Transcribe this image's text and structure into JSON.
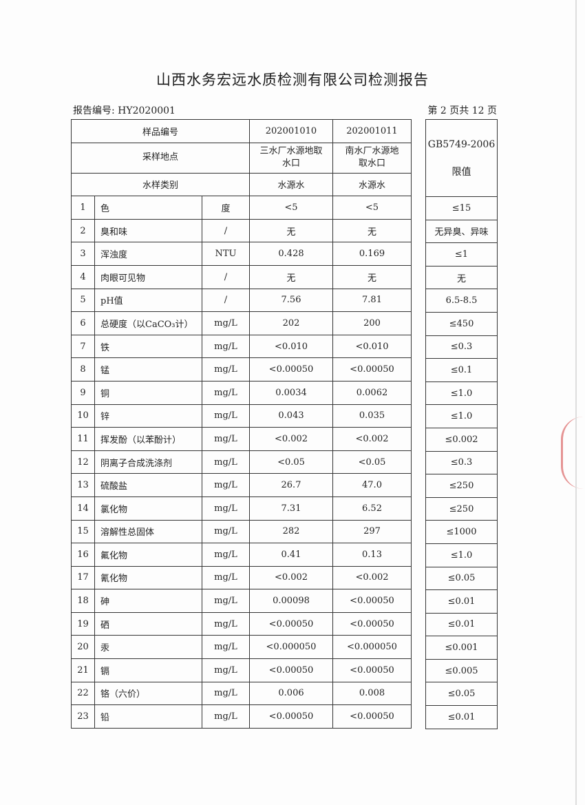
{
  "title": "山西水务宏远水质检测有限公司检测报告",
  "report_no": "报告编号: HY2020001",
  "page_info": "第 2 页共 12 页",
  "header": {
    "sample_no_label": "样品编号",
    "sample_nos": [
      "202001010",
      "202001011"
    ],
    "location_label": "采样地点",
    "locations": [
      "三水厂水源地取水口",
      "南水厂水源地取水口"
    ],
    "type_label": "水样类别",
    "types": [
      "水源水",
      "水源水"
    ],
    "standard_label": "GB5749-2006 限值"
  },
  "rows": [
    {
      "no": "1",
      "item": "色",
      "unit": "度",
      "v1": "<5",
      "v2": "<5",
      "limit": "≤15"
    },
    {
      "no": "2",
      "item": "臭和味",
      "unit": "/",
      "v1": "无",
      "v2": "无",
      "limit": "无异臭、异味"
    },
    {
      "no": "3",
      "item": "浑浊度",
      "unit": "NTU",
      "v1": "0.428",
      "v2": "0.169",
      "limit": "≤1"
    },
    {
      "no": "4",
      "item": "肉眼可见物",
      "unit": "/",
      "v1": "无",
      "v2": "无",
      "limit": "无"
    },
    {
      "no": "5",
      "item": "pH值",
      "unit": "/",
      "v1": "7.56",
      "v2": "7.81",
      "limit": "6.5-8.5"
    },
    {
      "no": "6",
      "item": "总硬度（以CaCO₃计）",
      "unit": "mg/L",
      "v1": "202",
      "v2": "200",
      "limit": "≤450"
    },
    {
      "no": "7",
      "item": "铁",
      "unit": "mg/L",
      "v1": "<0.010",
      "v2": "<0.010",
      "limit": "≤0.3"
    },
    {
      "no": "8",
      "item": "锰",
      "unit": "mg/L",
      "v1": "<0.00050",
      "v2": "<0.00050",
      "limit": "≤0.1"
    },
    {
      "no": "9",
      "item": "铜",
      "unit": "mg/L",
      "v1": "0.0034",
      "v2": "0.0062",
      "limit": "≤1.0"
    },
    {
      "no": "10",
      "item": "锌",
      "unit": "mg/L",
      "v1": "0.043",
      "v2": "0.035",
      "limit": "≤1.0"
    },
    {
      "no": "11",
      "item": "挥发酚（以苯酚计）",
      "unit": "mg/L",
      "v1": "<0.002",
      "v2": "<0.002",
      "limit": "≤0.002"
    },
    {
      "no": "12",
      "item": "阴离子合成洗涤剂",
      "unit": "mg/L",
      "v1": "<0.05",
      "v2": "<0.05",
      "limit": "≤0.3"
    },
    {
      "no": "13",
      "item": "硫酸盐",
      "unit": "mg/L",
      "v1": "26.7",
      "v2": "47.0",
      "limit": "≤250"
    },
    {
      "no": "14",
      "item": "氯化物",
      "unit": "mg/L",
      "v1": "7.31",
      "v2": "6.52",
      "limit": "≤250"
    },
    {
      "no": "15",
      "item": "溶解性总固体",
      "unit": "mg/L",
      "v1": "282",
      "v2": "297",
      "limit": "≤1000"
    },
    {
      "no": "16",
      "item": "氟化物",
      "unit": "mg/L",
      "v1": "0.41",
      "v2": "0.13",
      "limit": "≤1.0"
    },
    {
      "no": "17",
      "item": "氰化物",
      "unit": "mg/L",
      "v1": "<0.002",
      "v2": "<0.002",
      "limit": "≤0.05"
    },
    {
      "no": "18",
      "item": "砷",
      "unit": "mg/L",
      "v1": "0.00098",
      "v2": "<0.00050",
      "limit": "≤0.01"
    },
    {
      "no": "19",
      "item": "硒",
      "unit": "mg/L",
      "v1": "<0.00050",
      "v2": "<0.00050",
      "limit": "≤0.01"
    },
    {
      "no": "20",
      "item": "汞",
      "unit": "mg/L",
      "v1": "<0.000050",
      "v2": "<0.000050",
      "limit": "≤0.001"
    },
    {
      "no": "21",
      "item": "镉",
      "unit": "mg/L",
      "v1": "<0.00050",
      "v2": "<0.00050",
      "limit": "≤0.005"
    },
    {
      "no": "22",
      "item": "铬（六价）",
      "unit": "mg/L",
      "v1": "0.006",
      "v2": "0.008",
      "limit": "≤0.05"
    },
    {
      "no": "23",
      "item": "铅",
      "unit": "mg/L",
      "v1": "<0.00050",
      "v2": "<0.00050",
      "limit": "≤0.01"
    }
  ]
}
